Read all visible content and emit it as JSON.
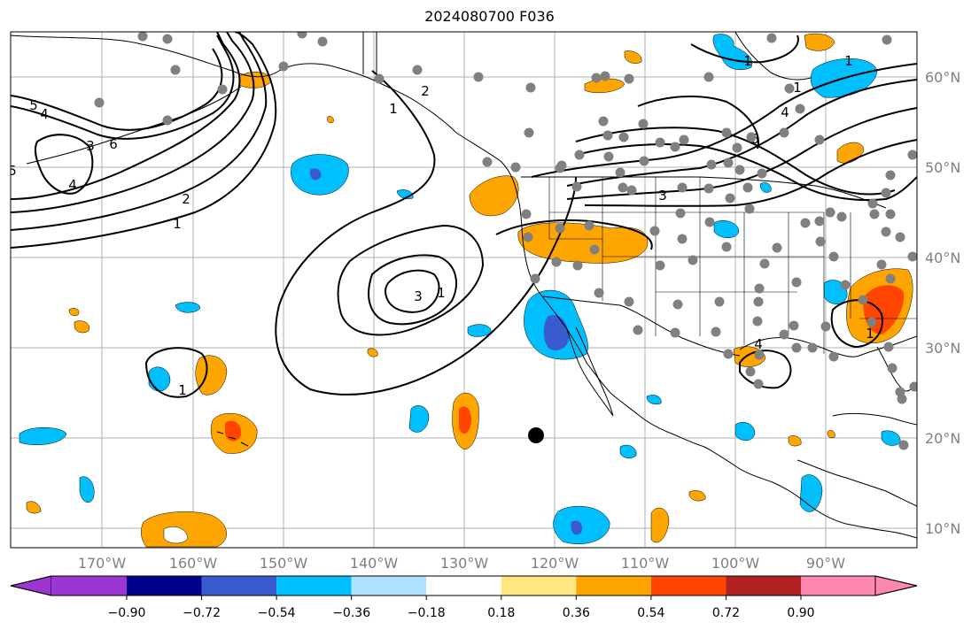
{
  "title": "2024080700 F036",
  "map": {
    "longitude_labels": [
      "170°W",
      "160°W",
      "150°W",
      "140°W",
      "130°W",
      "120°W",
      "110°W",
      "100°W",
      "90°W"
    ],
    "latitude_labels": [
      "60°N",
      "50°N",
      "40°N",
      "30°N",
      "20°N",
      "10°N"
    ],
    "contour_labels": [
      "5",
      "4",
      "3",
      "6",
      "4",
      "2",
      "1",
      "5",
      "1",
      "2",
      "1",
      "4",
      "3",
      "1",
      "1",
      "3",
      "6",
      "1",
      "4",
      "1",
      "1"
    ]
  },
  "colorbar": {
    "tick_labels": [
      "−0.90",
      "−0.72",
      "−0.54",
      "−0.36",
      "−0.18",
      "0.18",
      "0.36",
      "0.54",
      "0.72",
      "0.90"
    ],
    "colors": [
      "#9b36d2",
      "#00008b",
      "#3a5bd0",
      "#00bfff",
      "#aee0ff",
      "#ffffff",
      "#ffe680",
      "#ffa500",
      "#ff4500",
      "#b22222",
      "#ff88b0"
    ]
  },
  "colors": {
    "station_dots": "#808080",
    "marker": "#000000",
    "grid": "#b0b0b0"
  }
}
